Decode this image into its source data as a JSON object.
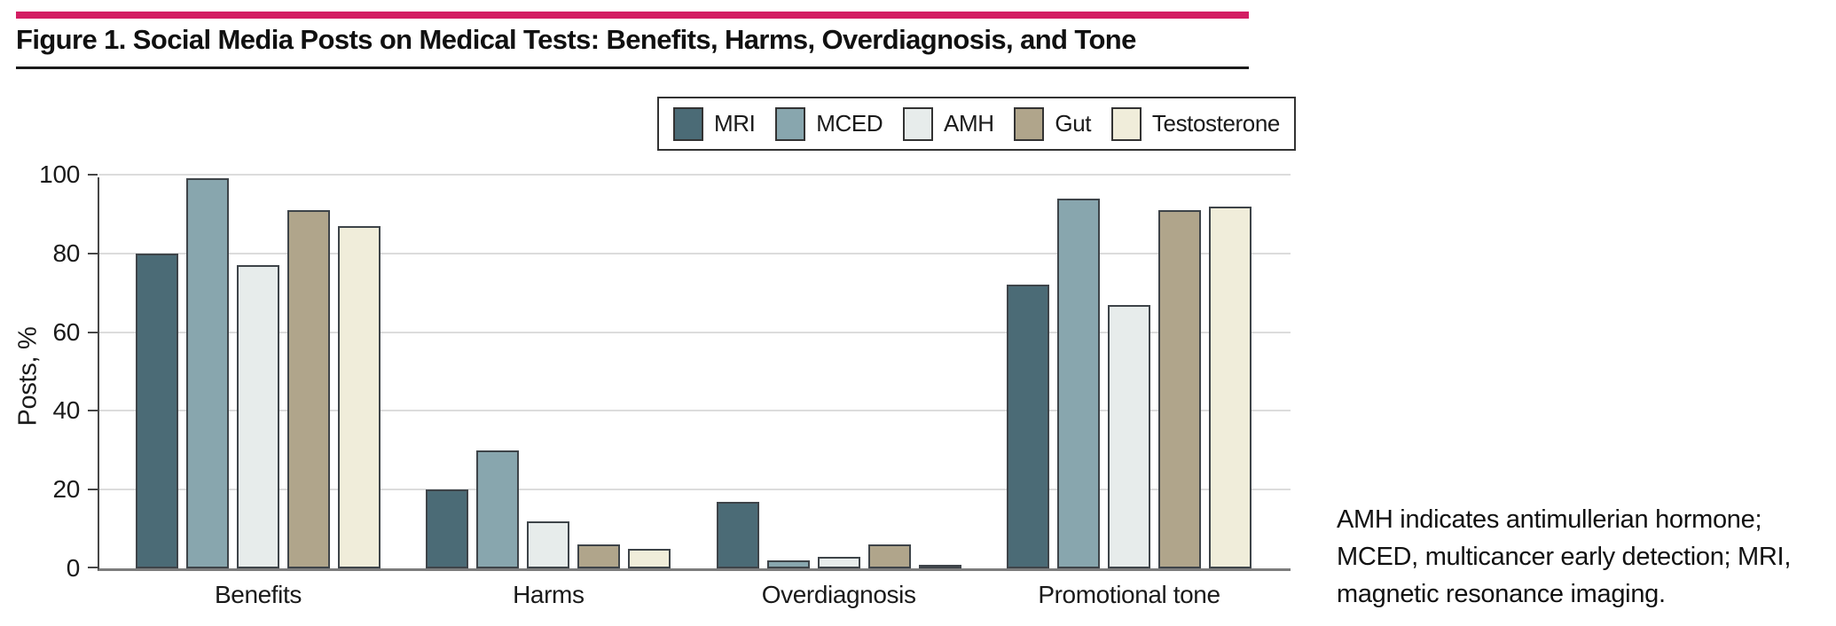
{
  "title": "Figure 1. Social Media Posts on Medical Tests: Benefits, Harms, Overdiagnosis, and Tone",
  "accent_color": "#d31e63",
  "chart_data": {
    "type": "bar",
    "title": "Social Media Posts on Medical Tests: Benefits, Harms, Overdiagnosis, and Tone",
    "categories": [
      "Benefits",
      "Harms",
      "Overdiagnosis",
      "Promotional tone"
    ],
    "series": [
      {
        "name": "MRI",
        "color": "#4b6b76",
        "values": [
          80,
          20,
          17,
          72
        ]
      },
      {
        "name": "MCED",
        "color": "#88a6ae",
        "values": [
          99,
          30,
          2,
          94
        ]
      },
      {
        "name": "AMH",
        "color": "#e7eceb",
        "values": [
          77,
          12,
          3,
          67
        ]
      },
      {
        "name": "Gut",
        "color": "#b0a58b",
        "values": [
          91,
          6,
          6,
          91
        ]
      },
      {
        "name": "Testosterone",
        "color": "#f0edda",
        "values": [
          87,
          5,
          1,
          92
        ]
      }
    ],
    "xlabel": "",
    "ylabel": "Posts, %",
    "ylim": [
      0,
      100
    ],
    "yticks": [
      0,
      20,
      40,
      60,
      80,
      100
    ],
    "grid": true,
    "legend_position": "top-right"
  },
  "footnote": "AMH indicates antimullerian hormone; MCED, multicancer early detection; MRI, magnetic resonance imaging."
}
